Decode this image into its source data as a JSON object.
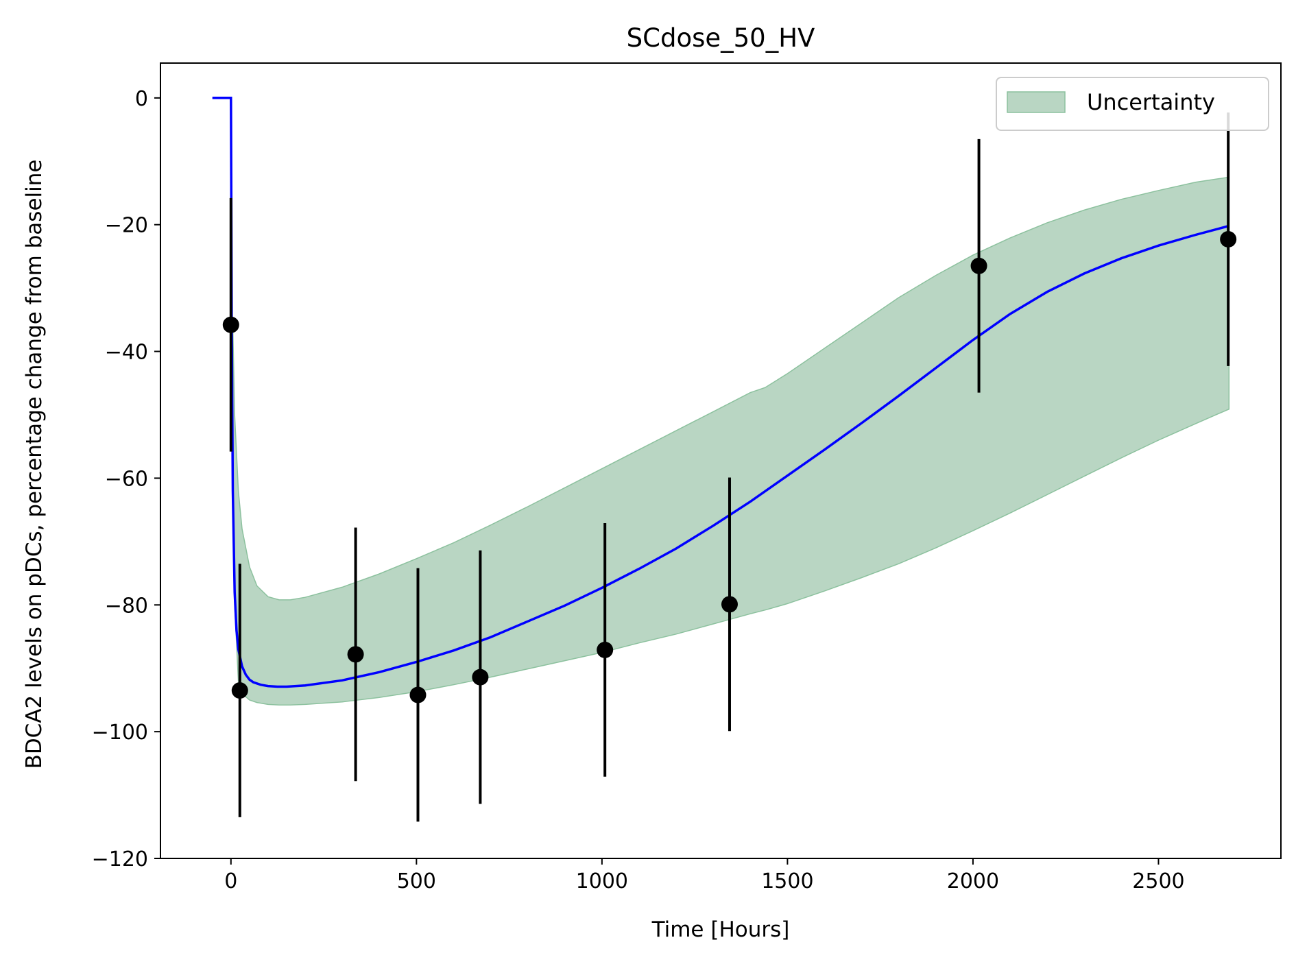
{
  "chart_data": {
    "type": "line",
    "title": "SCdose_50_HV",
    "xlabel": "Time [Hours]",
    "ylabel": "BDCA2 levels on pDCs, percentage change from baseline",
    "xlim": [
      -190,
      2830
    ],
    "ylim": [
      -120,
      5.5
    ],
    "xticks": [
      0,
      500,
      1000,
      1500,
      2000,
      2500
    ],
    "yticks": [
      0,
      -20,
      -40,
      -60,
      -80,
      -100,
      -120
    ],
    "xtick_labels": [
      "0",
      "500",
      "1000",
      "1500",
      "2000",
      "2500"
    ],
    "ytick_labels": [
      "0",
      "−20",
      "−40",
      "−60",
      "−80",
      "−100",
      "−120"
    ],
    "grid": false,
    "legend": {
      "placement": "top-right",
      "entries": [
        "Uncertainty"
      ]
    },
    "colors": {
      "model_line": "#0000ff",
      "band_fill": "#b9d6c3",
      "band_edge": "#8cc19e",
      "observations": "#000000"
    },
    "model_curve": {
      "x": [
        -50,
        -5,
        0,
        2,
        5,
        10,
        15,
        20,
        30,
        40,
        50,
        60,
        80,
        100,
        125,
        150,
        200,
        300,
        400,
        500,
        600,
        700,
        800,
        900,
        1000,
        1100,
        1200,
        1300,
        1400,
        1500,
        1600,
        1700,
        1800,
        1900,
        2000,
        2100,
        2200,
        2300,
        2400,
        2500,
        2600,
        2690
      ],
      "y": [
        0,
        0,
        0,
        -35,
        -62,
        -78,
        -84,
        -87,
        -89.7,
        -91,
        -91.8,
        -92.2,
        -92.6,
        -92.8,
        -92.9,
        -92.9,
        -92.7,
        -91.9,
        -90.6,
        -89,
        -87.2,
        -85.1,
        -82.6,
        -80.1,
        -77.3,
        -74.3,
        -71.1,
        -67.5,
        -63.7,
        -59.6,
        -55.5,
        -51.3,
        -47,
        -42.6,
        -38.2,
        -34.1,
        -30.6,
        -27.7,
        -25.3,
        -23.3,
        -21.6,
        -20.2
      ]
    },
    "uncertainty_band": {
      "name": "Uncertainty",
      "x": [
        5,
        10,
        20,
        30,
        50,
        70,
        100,
        130,
        160,
        200,
        300,
        400,
        500,
        600,
        700,
        800,
        900,
        1000,
        1100,
        1200,
        1300,
        1400,
        1440,
        1500,
        1600,
        1700,
        1800,
        1900,
        2000,
        2100,
        2200,
        2300,
        2400,
        2500,
        2600,
        2690
      ],
      "upper": [
        -36,
        -50,
        -62,
        -68,
        -74,
        -77,
        -78.7,
        -79.2,
        -79.2,
        -78.8,
        -77.2,
        -75.1,
        -72.7,
        -70.2,
        -67.4,
        -64.5,
        -61.5,
        -58.5,
        -55.5,
        -52.5,
        -49.5,
        -46.5,
        -45.7,
        -43.5,
        -39.5,
        -35.5,
        -31.5,
        -28,
        -24.8,
        -22.1,
        -19.7,
        -17.7,
        -16,
        -14.6,
        -13.3,
        -12.5
      ],
      "lower": [
        -60,
        -80,
        -92,
        -94,
        -95,
        -95.4,
        -95.7,
        -95.8,
        -95.8,
        -95.7,
        -95.3,
        -94.6,
        -93.7,
        -92.6,
        -91.4,
        -90.1,
        -88.8,
        -87.5,
        -86,
        -84.6,
        -83,
        -81.4,
        -80.8,
        -79.8,
        -77.8,
        -75.7,
        -73.5,
        -71,
        -68.3,
        -65.5,
        -62.6,
        -59.7,
        -56.8,
        -54,
        -51.4,
        -49.1
      ]
    },
    "observations": {
      "x": [
        0,
        24,
        336,
        504,
        672,
        1008,
        1344,
        2016,
        2688
      ],
      "y": [
        -35.8,
        -93.5,
        -87.8,
        -94.2,
        -91.4,
        -87.1,
        -79.9,
        -26.5,
        -22.3
      ],
      "err": [
        20,
        20,
        20,
        20,
        20,
        20,
        20,
        20,
        20
      ]
    }
  }
}
